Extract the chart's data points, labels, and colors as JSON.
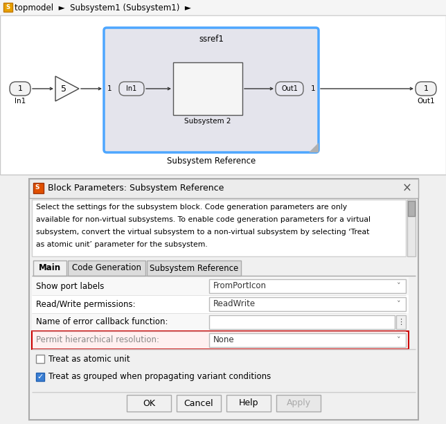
{
  "bg_color": "#f0f0f0",
  "canvas_bg": "#ffffff",
  "dialog_bg": "#f0f0f0",
  "blue_border": "#4da6ff",
  "red_border": "#cc0000",
  "breadcrumb_text": "topmodel  ►  Subsystem1 (Subsystem1)  ►",
  "block_label": "Subsystem Reference",
  "ssref_label": "ssref1",
  "subsystem2_label": "Subsystem 2",
  "gain_value": "5",
  "dialog_title": "Block Parameters: Subsystem Reference",
  "desc_line1": "Select the settings for the subsystem block. Code generation parameters are only",
  "desc_line2": "available for non-virtual subsystems. To enable code generation parameters for a virtual",
  "desc_line3": "subsystem, convert the virtual subsystem to a non-virtual subsystem by selecting ‘Treat",
  "desc_line4": "as atomic unit’ parameter for the subsystem.",
  "tabs": [
    "Main",
    "Code Generation",
    "Subsystem Reference"
  ],
  "active_tab": "Main",
  "params": [
    {
      "label": "Show port labels",
      "value": "FromPortIcon",
      "type": "dropdown"
    },
    {
      "label": "Read/Write permissions:",
      "value": "ReadWrite",
      "type": "dropdown"
    },
    {
      "label": "Name of error callback function:",
      "value": "",
      "type": "text_dots"
    },
    {
      "label": "Permit hierarchical resolution:",
      "value": "None",
      "type": "dropdown_red"
    }
  ],
  "checkboxes": [
    {
      "label": "Treat as atomic unit",
      "checked": false
    },
    {
      "label": "Treat as grouped when propagating variant conditions",
      "checked": true
    }
  ],
  "buttons": [
    "OK",
    "Cancel",
    "Help",
    "Apply"
  ]
}
